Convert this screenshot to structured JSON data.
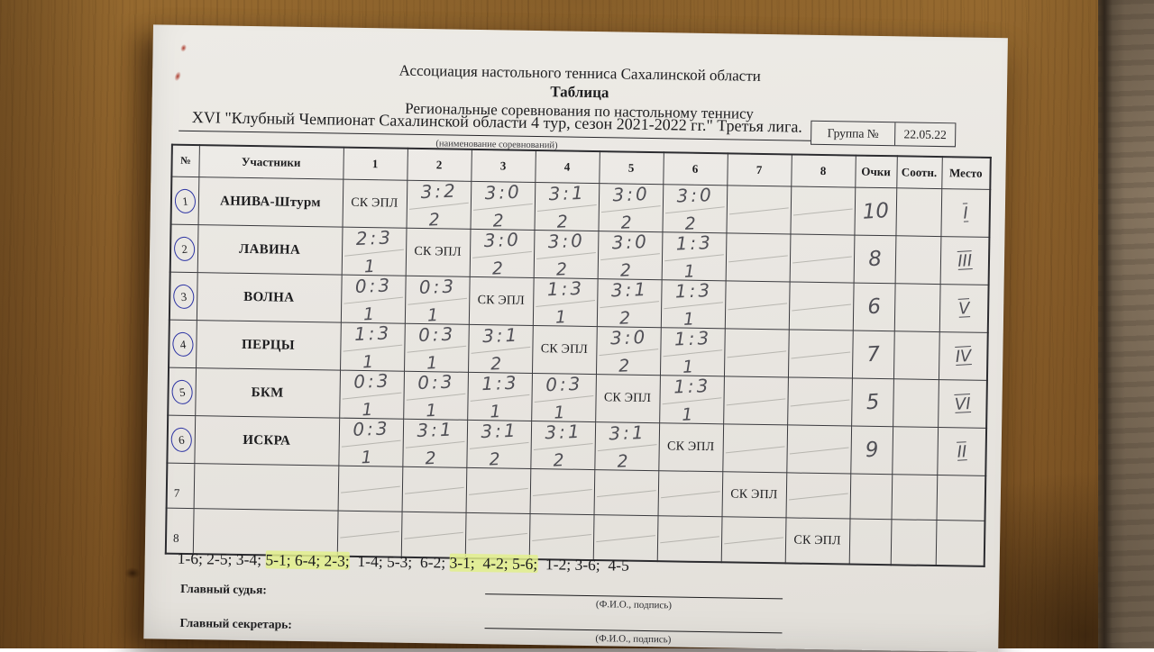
{
  "header": {
    "association": "Ассоциация настольного тенниса Сахалинской области",
    "doc_title": "Таблица",
    "subtitle": "Региональные соревнования по настольному теннису",
    "event_line": "XVI  \"Клубный Чемпионат Сахалинской области 4 тур, сезон 2021-2022 гг.\" Третья лига.",
    "event_caption": "(наименование соревнований)",
    "group_label": "Группа №",
    "group_value": "22.05.22"
  },
  "table": {
    "columns": [
      "№",
      "Участники",
      "1",
      "2",
      "3",
      "4",
      "5",
      "6",
      "7",
      "8",
      "Очки",
      "Соотн.",
      "Место"
    ],
    "self_cell": "СК ЭПЛ",
    "rows": [
      {
        "num": "1",
        "circled": true,
        "name": "АНИВА-Штурм",
        "cells": [
          {
            "self": true
          },
          {
            "s": "3:2",
            "p": "2"
          },
          {
            "s": "3:0",
            "p": "2"
          },
          {
            "s": "3:1",
            "p": "2"
          },
          {
            "s": "3:0",
            "p": "2"
          },
          {
            "s": "3:0",
            "p": "2"
          },
          null,
          null
        ],
        "points": "10",
        "ratio": "",
        "place": "I"
      },
      {
        "num": "2",
        "circled": true,
        "name": "ЛАВИНА",
        "cells": [
          {
            "s": "2:3",
            "p": "1"
          },
          {
            "self": true
          },
          {
            "s": "3:0",
            "p": "2"
          },
          {
            "s": "3:0",
            "p": "2"
          },
          {
            "s": "3:0",
            "p": "2"
          },
          {
            "s": "1:3",
            "p": "1"
          },
          null,
          null
        ],
        "points": "8",
        "ratio": "",
        "place": "III"
      },
      {
        "num": "3",
        "circled": true,
        "name": "ВОЛНА",
        "cells": [
          {
            "s": "0:3",
            "p": "1"
          },
          {
            "s": "0:3",
            "p": "1"
          },
          {
            "self": true
          },
          {
            "s": "1:3",
            "p": "1"
          },
          {
            "s": "3:1",
            "p": "2"
          },
          {
            "s": "1:3",
            "p": "1"
          },
          null,
          null
        ],
        "points": "6",
        "ratio": "",
        "place": "V"
      },
      {
        "num": "4",
        "circled": true,
        "name": "ПЕРЦЫ",
        "cells": [
          {
            "s": "1:3",
            "p": "1"
          },
          {
            "s": "0:3",
            "p": "1"
          },
          {
            "s": "3:1",
            "p": "2"
          },
          {
            "self": true
          },
          {
            "s": "3:0",
            "p": "2"
          },
          {
            "s": "1:3",
            "p": "1"
          },
          null,
          null
        ],
        "points": "7",
        "ratio": "",
        "place": "IV"
      },
      {
        "num": "5",
        "circled": true,
        "name": "БКМ",
        "cells": [
          {
            "s": "0:3",
            "p": "1"
          },
          {
            "s": "0:3",
            "p": "1"
          },
          {
            "s": "1:3",
            "p": "1"
          },
          {
            "s": "0:3",
            "p": "1"
          },
          {
            "self": true
          },
          {
            "s": "1:3",
            "p": "1"
          },
          null,
          null
        ],
        "points": "5",
        "ratio": "",
        "place": "VI"
      },
      {
        "num": "6",
        "circled": true,
        "name": "ИСКРА",
        "cells": [
          {
            "s": "0:3",
            "p": "1"
          },
          {
            "s": "3:1",
            "p": "2"
          },
          {
            "s": "3:1",
            "p": "2"
          },
          {
            "s": "3:1",
            "p": "2"
          },
          {
            "s": "3:1",
            "p": "2"
          },
          {
            "self": true
          },
          null,
          null
        ],
        "points": "9",
        "ratio": "",
        "place": "II"
      },
      {
        "num": "7",
        "circled": false,
        "name": "",
        "cells": [
          null,
          null,
          null,
          null,
          null,
          null,
          {
            "self": true
          },
          null
        ],
        "points": "",
        "ratio": "",
        "place": ""
      },
      {
        "num": "8",
        "circled": false,
        "name": "",
        "cells": [
          null,
          null,
          null,
          null,
          null,
          null,
          null,
          {
            "self": true
          }
        ],
        "points": "",
        "ratio": "",
        "place": ""
      }
    ]
  },
  "schedule": {
    "segments": [
      {
        "text": "1-6; 2-5; 3-4; ",
        "highlight": false
      },
      {
        "text": "5-1; 6-4; 2-3;",
        "highlight": true
      },
      {
        "text": "  1-4; 5-3;  6-2; ",
        "highlight": false
      },
      {
        "text": "3-1;  4-2; 5-6;",
        "highlight": true
      },
      {
        "text": "  1-2; 3-6;  4-5",
        "highlight": false
      }
    ]
  },
  "footer": {
    "judge_label": "Главный судья:",
    "secretary_label": "Главный секретарь:",
    "sign_caption": "(Ф.И.О., подпись)"
  }
}
